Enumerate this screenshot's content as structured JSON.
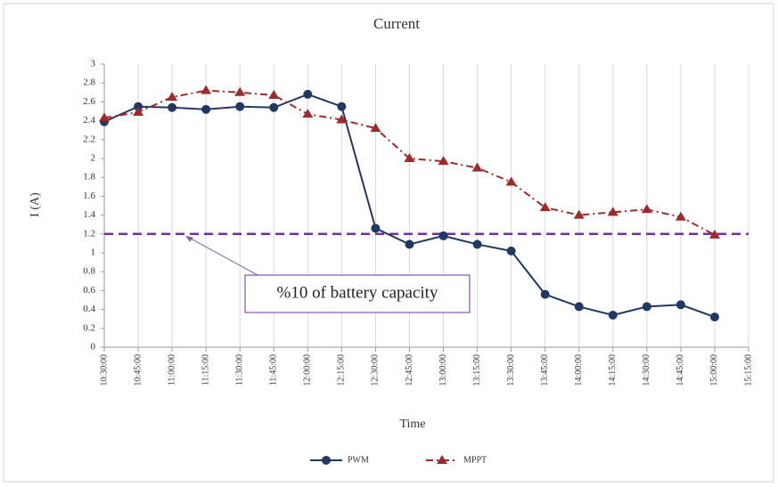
{
  "chart_data": {
    "type": "line",
    "title": "Current",
    "x_label": "Time",
    "y_label": "I (A)",
    "categories": [
      "10:30:00",
      "10:45:00",
      "11:00:00",
      "11:15:00",
      "11:30:00",
      "11:45:00",
      "12:00:00",
      "12:15:00",
      "12:30:00",
      "12:45:00",
      "13:00:00",
      "13:15:00",
      "13:30:00",
      "13:45:00",
      "14:00:00",
      "14:15:00",
      "14:30:00",
      "14:45:00",
      "15:00:00",
      "15:15:00"
    ],
    "series": [
      {
        "name": "PWM",
        "color": "#1f3864",
        "marker": "circle",
        "dash": "solid",
        "values": [
          2.39,
          2.55,
          2.54,
          2.52,
          2.55,
          2.54,
          2.68,
          2.55,
          1.26,
          1.09,
          1.18,
          1.09,
          1.02,
          0.56,
          0.43,
          0.34,
          0.43,
          0.45,
          0.32,
          null
        ]
      },
      {
        "name": "MPPT",
        "color": "#9e2a2a",
        "marker": "triangle",
        "dash": "dashdot",
        "values": [
          2.43,
          2.49,
          2.65,
          2.72,
          2.7,
          2.67,
          2.47,
          2.41,
          2.32,
          2.0,
          1.97,
          1.9,
          1.75,
          1.48,
          1.4,
          1.43,
          1.46,
          1.38,
          1.19,
          null
        ]
      }
    ],
    "reference_line": {
      "value": 1.2,
      "color": "#7030a0"
    },
    "annotation": "%10 of battery capacity",
    "ylim": [
      0,
      3
    ],
    "yticks": [
      0,
      0.2,
      0.4,
      0.6,
      0.8,
      1,
      1.2,
      1.4,
      1.6,
      1.8,
      2,
      2.2,
      2.4,
      2.6,
      2.8,
      3
    ],
    "grid": "x",
    "legend": "bottom"
  }
}
